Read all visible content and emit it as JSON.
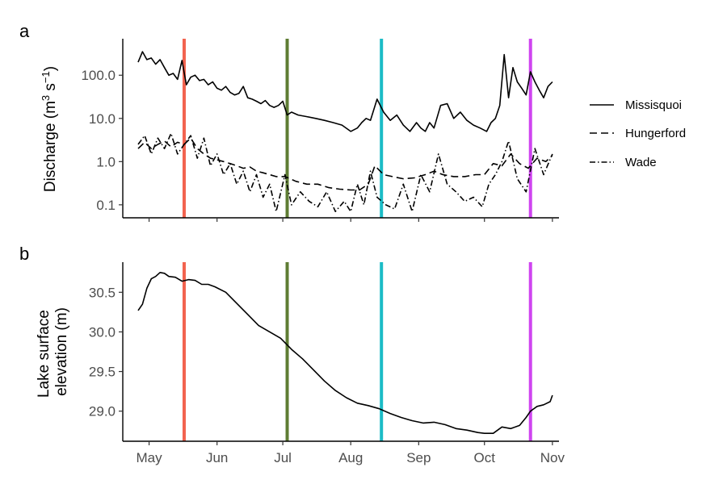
{
  "chart_data": [
    {
      "panel_label": "a",
      "type": "line",
      "ylabel_parts": [
        "Discharge (m",
        "3",
        " s",
        "−1",
        ")"
      ],
      "yscale": "log",
      "yticks": [
        0.1,
        1,
        10,
        100
      ],
      "ytick_labels": [
        "0.1",
        "1.0",
        "10.0",
        "100.0"
      ],
      "ylim": [
        0.05,
        700
      ],
      "xlim": [
        "2019-04-19",
        "2019-11-04"
      ],
      "xticks": [
        "2019-05-01",
        "2019-06-01",
        "2019-07-01",
        "2019-08-01",
        "2019-09-01",
        "2019-10-01",
        "2019-11-01"
      ],
      "xtick_labels": [
        "May",
        "Jun",
        "Jul",
        "Aug",
        "Sep",
        "Oct",
        "Nov"
      ],
      "show_xtick_labels": false,
      "grid": false,
      "legend_position": "right",
      "series": [
        {
          "name": "Missisquoi",
          "linestyle": "solid",
          "x": [
            "2019-04-26",
            "2019-04-28",
            "2019-04-30",
            "2019-05-02",
            "2019-05-04",
            "2019-05-06",
            "2019-05-08",
            "2019-05-10",
            "2019-05-12",
            "2019-05-14",
            "2019-05-16",
            "2019-05-18",
            "2019-05-20",
            "2019-05-22",
            "2019-05-24",
            "2019-05-26",
            "2019-05-28",
            "2019-05-30",
            "2019-06-01",
            "2019-06-03",
            "2019-06-05",
            "2019-06-07",
            "2019-06-09",
            "2019-06-11",
            "2019-06-13",
            "2019-06-15",
            "2019-06-17",
            "2019-06-19",
            "2019-06-21",
            "2019-06-23",
            "2019-06-25",
            "2019-06-27",
            "2019-06-29",
            "2019-07-01",
            "2019-07-03",
            "2019-07-05",
            "2019-07-08",
            "2019-07-12",
            "2019-07-16",
            "2019-07-20",
            "2019-07-24",
            "2019-07-28",
            "2019-08-01",
            "2019-08-04",
            "2019-08-06",
            "2019-08-08",
            "2019-08-10",
            "2019-08-13",
            "2019-08-16",
            "2019-08-19",
            "2019-08-22",
            "2019-08-25",
            "2019-08-28",
            "2019-08-31",
            "2019-09-02",
            "2019-09-04",
            "2019-09-06",
            "2019-09-08",
            "2019-09-11",
            "2019-09-14",
            "2019-09-17",
            "2019-09-20",
            "2019-09-23",
            "2019-09-26",
            "2019-09-29",
            "2019-10-02",
            "2019-10-04",
            "2019-10-06",
            "2019-10-08",
            "2019-10-10",
            "2019-10-12",
            "2019-10-14",
            "2019-10-16",
            "2019-10-18",
            "2019-10-20",
            "2019-10-22",
            "2019-10-24",
            "2019-10-26",
            "2019-10-28",
            "2019-10-30",
            "2019-11-01"
          ],
          "y": [
            200,
            350,
            230,
            250,
            180,
            230,
            150,
            100,
            110,
            80,
            220,
            60,
            90,
            100,
            75,
            80,
            60,
            70,
            50,
            45,
            55,
            40,
            35,
            38,
            55,
            30,
            28,
            25,
            22,
            26,
            20,
            18,
            20,
            25,
            12,
            14,
            12,
            11,
            10,
            9,
            8,
            7,
            5,
            6,
            8,
            10,
            9,
            28,
            14,
            9,
            12,
            7,
            5,
            8,
            6,
            5,
            8,
            6,
            20,
            22,
            10,
            14,
            9,
            7,
            6,
            5,
            8,
            10,
            20,
            300,
            30,
            150,
            70,
            50,
            35,
            120,
            70,
            45,
            30,
            55,
            70
          ]
        },
        {
          "name": "Hungerford",
          "linestyle": "dashed",
          "x": [
            "2019-04-26",
            "2019-04-29",
            "2019-05-02",
            "2019-05-05",
            "2019-05-08",
            "2019-05-11",
            "2019-05-14",
            "2019-05-17",
            "2019-05-20",
            "2019-05-23",
            "2019-05-26",
            "2019-05-29",
            "2019-06-01",
            "2019-06-04",
            "2019-06-07",
            "2019-06-10",
            "2019-06-13",
            "2019-06-16",
            "2019-06-19",
            "2019-06-22",
            "2019-06-25",
            "2019-06-28",
            "2019-07-02",
            "2019-07-07",
            "2019-07-12",
            "2019-07-17",
            "2019-07-22",
            "2019-07-27",
            "2019-08-01",
            "2019-08-05",
            "2019-08-09",
            "2019-08-12",
            "2019-08-16",
            "2019-08-20",
            "2019-08-25",
            "2019-08-30",
            "2019-09-04",
            "2019-09-08",
            "2019-09-12",
            "2019-09-17",
            "2019-09-22",
            "2019-09-27",
            "2019-10-01",
            "2019-10-05",
            "2019-10-09",
            "2019-10-13",
            "2019-10-17",
            "2019-10-21",
            "2019-10-25",
            "2019-10-29",
            "2019-11-01"
          ],
          "y": [
            2.0,
            2.8,
            2.0,
            2.5,
            3.0,
            2.2,
            2.8,
            2.5,
            3.5,
            2.0,
            1.5,
            1.2,
            1.1,
            1.0,
            0.9,
            0.8,
            0.7,
            0.75,
            0.6,
            0.55,
            0.5,
            0.45,
            0.45,
            0.35,
            0.3,
            0.3,
            0.25,
            0.23,
            0.22,
            0.22,
            0.3,
            0.8,
            0.5,
            0.45,
            0.4,
            0.42,
            0.5,
            0.6,
            0.5,
            0.45,
            0.45,
            0.5,
            0.5,
            0.9,
            0.8,
            1.5,
            0.9,
            0.7,
            1.2,
            1.0,
            1.4
          ]
        },
        {
          "name": "Wade",
          "linestyle": "dotdash",
          "x": [
            "2019-04-26",
            "2019-04-29",
            "2019-05-02",
            "2019-05-05",
            "2019-05-08",
            "2019-05-11",
            "2019-05-14",
            "2019-05-17",
            "2019-05-20",
            "2019-05-23",
            "2019-05-26",
            "2019-05-29",
            "2019-06-01",
            "2019-06-04",
            "2019-06-07",
            "2019-06-10",
            "2019-06-13",
            "2019-06-16",
            "2019-06-19",
            "2019-06-22",
            "2019-06-25",
            "2019-06-28",
            "2019-07-02",
            "2019-07-05",
            "2019-07-09",
            "2019-07-13",
            "2019-07-17",
            "2019-07-21",
            "2019-07-25",
            "2019-07-29",
            "2019-08-01",
            "2019-08-04",
            "2019-08-07",
            "2019-08-10",
            "2019-08-13",
            "2019-08-17",
            "2019-08-21",
            "2019-08-25",
            "2019-08-29",
            "2019-09-02",
            "2019-09-06",
            "2019-09-10",
            "2019-09-14",
            "2019-09-18",
            "2019-09-22",
            "2019-09-26",
            "2019-09-30",
            "2019-10-03",
            "2019-10-06",
            "2019-10-09",
            "2019-10-12",
            "2019-10-16",
            "2019-10-20",
            "2019-10-24",
            "2019-10-28",
            "2019-11-01"
          ],
          "y": [
            2.5,
            4.0,
            1.5,
            3.5,
            2.0,
            4.5,
            1.5,
            2.5,
            4.0,
            1.2,
            3.5,
            0.8,
            1.5,
            0.5,
            0.9,
            0.3,
            0.6,
            0.2,
            0.5,
            0.15,
            0.3,
            0.07,
            0.5,
            0.1,
            0.2,
            0.12,
            0.09,
            0.2,
            0.07,
            0.12,
            0.07,
            0.3,
            0.1,
            0.6,
            0.15,
            0.1,
            0.08,
            0.3,
            0.07,
            0.5,
            0.2,
            1.5,
            0.3,
            0.2,
            0.12,
            0.15,
            0.09,
            0.3,
            0.5,
            1.0,
            3.0,
            0.4,
            0.2,
            2.0,
            0.5,
            1.5
          ]
        }
      ],
      "vlines": [
        {
          "x": "2019-05-17",
          "color": "#F2634F"
        },
        {
          "x": "2019-07-03",
          "color": "#5F7D34"
        },
        {
          "x": "2019-08-15",
          "color": "#1BBCC6"
        },
        {
          "x": "2019-10-22",
          "color": "#CF44F0"
        }
      ]
    },
    {
      "panel_label": "b",
      "type": "line",
      "ylabel_lines": [
        "Lake surface",
        "elevation (m)"
      ],
      "yscale": "linear",
      "yticks": [
        29.0,
        29.5,
        30.0,
        30.5
      ],
      "ytick_labels": [
        "29.0",
        "29.5",
        "30.0",
        "30.5"
      ],
      "ylim": [
        28.62,
        30.88
      ],
      "xlim": [
        "2019-04-19",
        "2019-11-04"
      ],
      "xticks": [
        "2019-05-01",
        "2019-06-01",
        "2019-07-01",
        "2019-08-01",
        "2019-09-01",
        "2019-10-01",
        "2019-11-01"
      ],
      "xtick_labels": [
        "May",
        "Jun",
        "Jul",
        "Aug",
        "Sep",
        "Oct",
        "Nov"
      ],
      "grid": false,
      "series": [
        {
          "name": "",
          "linestyle": "solid",
          "x": [
            "2019-04-26",
            "2019-04-28",
            "2019-04-30",
            "2019-05-02",
            "2019-05-04",
            "2019-05-06",
            "2019-05-08",
            "2019-05-10",
            "2019-05-13",
            "2019-05-16",
            "2019-05-19",
            "2019-05-22",
            "2019-05-25",
            "2019-05-28",
            "2019-05-31",
            "2019-06-05",
            "2019-06-10",
            "2019-06-15",
            "2019-06-20",
            "2019-06-25",
            "2019-06-30",
            "2019-07-05",
            "2019-07-10",
            "2019-07-15",
            "2019-07-20",
            "2019-07-25",
            "2019-07-30",
            "2019-08-04",
            "2019-08-09",
            "2019-08-14",
            "2019-08-19",
            "2019-08-24",
            "2019-08-29",
            "2019-09-03",
            "2019-09-08",
            "2019-09-13",
            "2019-09-18",
            "2019-09-23",
            "2019-09-28",
            "2019-10-01",
            "2019-10-05",
            "2019-10-09",
            "2019-10-13",
            "2019-10-17",
            "2019-10-20",
            "2019-10-22",
            "2019-10-25",
            "2019-10-28",
            "2019-10-31",
            "2019-11-01"
          ],
          "y": [
            30.27,
            30.35,
            30.55,
            30.67,
            30.7,
            30.75,
            30.74,
            30.7,
            30.69,
            30.64,
            30.66,
            30.65,
            30.6,
            30.6,
            30.57,
            30.5,
            30.36,
            30.22,
            30.08,
            30.0,
            29.92,
            29.78,
            29.66,
            29.52,
            29.38,
            29.26,
            29.17,
            29.1,
            29.07,
            29.03,
            28.97,
            28.92,
            28.88,
            28.85,
            28.86,
            28.83,
            28.78,
            28.76,
            28.73,
            28.72,
            28.72,
            28.8,
            28.78,
            28.82,
            28.92,
            29.0,
            29.06,
            29.08,
            29.12,
            29.2
          ]
        }
      ],
      "vlines": [
        {
          "x": "2019-05-17",
          "color": "#F2634F"
        },
        {
          "x": "2019-07-03",
          "color": "#5F7D34"
        },
        {
          "x": "2019-08-15",
          "color": "#1BBCC6"
        },
        {
          "x": "2019-10-22",
          "color": "#CF44F0"
        }
      ]
    }
  ]
}
